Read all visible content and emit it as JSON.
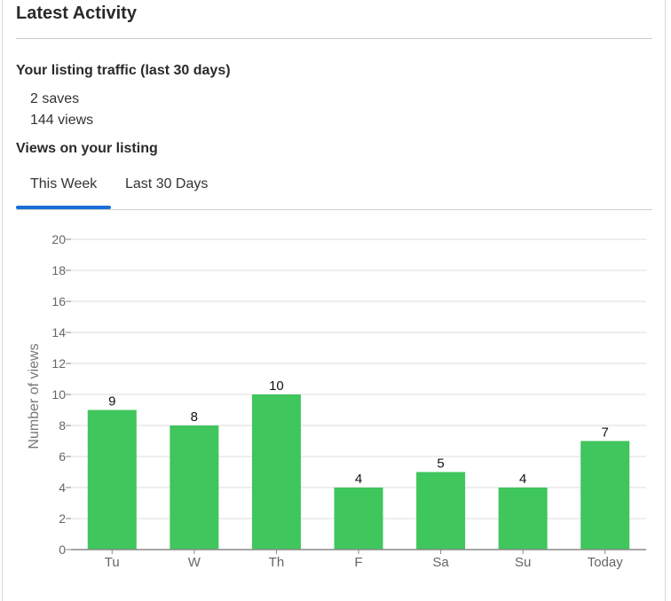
{
  "card": {
    "title": "Latest Activity",
    "traffic_heading": "Your listing traffic (last 30 days)",
    "saves": "2 saves",
    "views": "144 views",
    "views_heading": "Views on your listing",
    "tabs": [
      {
        "label": "This Week",
        "active": true
      },
      {
        "label": "Last 30 Days",
        "active": false
      }
    ]
  },
  "colors": {
    "bar": "#3fc65c",
    "tab_active": "#1a6ed8",
    "grid": "#dddddd",
    "axis": "#888888"
  },
  "chart_data": {
    "type": "bar",
    "categories": [
      "Tu",
      "W",
      "Th",
      "F",
      "Sa",
      "Su",
      "Today"
    ],
    "values": [
      9,
      8,
      10,
      4,
      5,
      4,
      7
    ],
    "ylabel": "Number of views",
    "xlabel": "",
    "ylim": [
      0,
      20
    ],
    "yticks": [
      0,
      2,
      4,
      6,
      8,
      10,
      12,
      14,
      16,
      18,
      20
    ],
    "grid": true,
    "data_labels": true
  }
}
